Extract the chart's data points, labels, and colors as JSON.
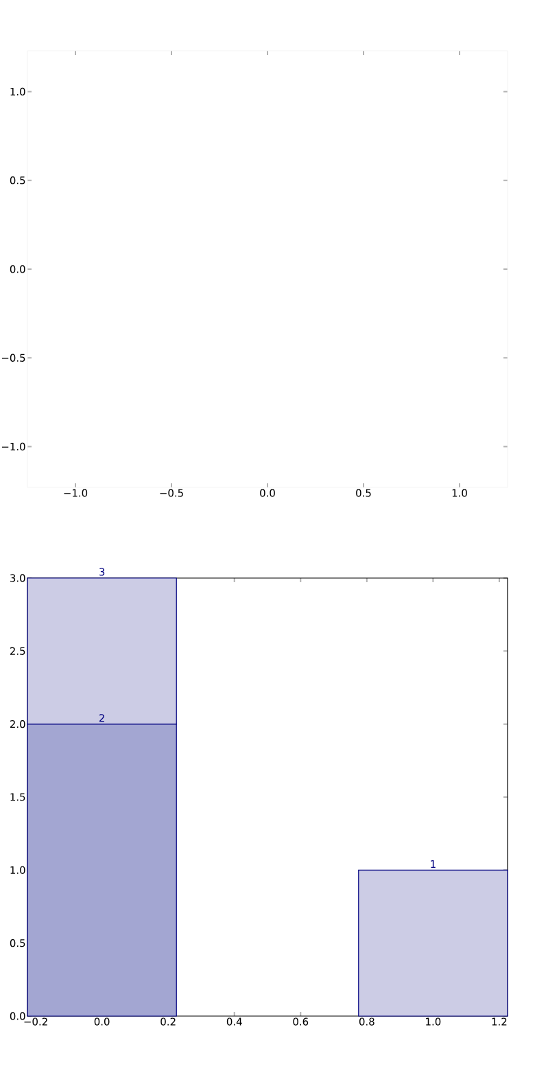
{
  "chart_data": [
    {
      "type": "scatter",
      "xlim": [
        -1.25,
        1.25
      ],
      "ylim": [
        -1.23,
        1.23
      ],
      "xticks": [
        {
          "value": -1.0,
          "label": "−1.0"
        },
        {
          "value": -0.5,
          "label": "−0.5"
        },
        {
          "value": 0.0,
          "label": "0.0"
        },
        {
          "value": 0.5,
          "label": "0.5"
        },
        {
          "value": 1.0,
          "label": "1.0"
        }
      ],
      "yticks": [
        {
          "value": -1.0,
          "label": "−1.0"
        },
        {
          "value": -0.5,
          "label": "−0.5"
        },
        {
          "value": 0.0,
          "label": "0.0"
        },
        {
          "value": 0.5,
          "label": "0.5"
        },
        {
          "value": 1.0,
          "label": "1.0"
        }
      ]
    },
    {
      "type": "bar",
      "stacked": true,
      "x": [
        0,
        1
      ],
      "xlim": [
        -0.225,
        1.225
      ],
      "ylim": [
        0,
        3
      ],
      "xticks": [
        {
          "value": -0.2,
          "label": "−0.2"
        },
        {
          "value": 0.0,
          "label": "0.0"
        },
        {
          "value": 0.2,
          "label": "0.2"
        },
        {
          "value": 0.4,
          "label": "0.4"
        },
        {
          "value": 0.6,
          "label": "0.6"
        },
        {
          "value": 0.8,
          "label": "0.8"
        },
        {
          "value": 1.0,
          "label": "1.0"
        },
        {
          "value": 1.2,
          "label": "1.2"
        }
      ],
      "yticks": [
        {
          "value": 0.0,
          "label": "0.0"
        },
        {
          "value": 0.5,
          "label": "0.5"
        },
        {
          "value": 1.0,
          "label": "1.0"
        },
        {
          "value": 1.5,
          "label": "1.5"
        },
        {
          "value": 2.0,
          "label": "2.0"
        },
        {
          "value": 2.5,
          "label": "2.5"
        },
        {
          "value": 3.0,
          "label": "3.0"
        }
      ],
      "series": [
        {
          "color": "#a3a6d2",
          "values": [
            2,
            null
          ],
          "value_labels": [
            "2",
            null
          ]
        },
        {
          "color": "#cccce5",
          "values": [
            1,
            1
          ]
        }
      ],
      "totals": [
        "3",
        "1"
      ]
    }
  ]
}
